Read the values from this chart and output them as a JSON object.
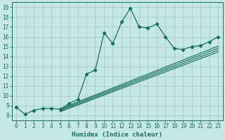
{
  "title": "",
  "xlabel": "Humidex (Indice chaleur)",
  "ylabel": "",
  "xlim": [
    -0.5,
    23.5
  ],
  "ylim": [
    7.5,
    19.5
  ],
  "xticks": [
    0,
    1,
    2,
    3,
    4,
    5,
    6,
    7,
    8,
    9,
    10,
    11,
    12,
    13,
    14,
    15,
    16,
    17,
    18,
    19,
    20,
    21,
    22,
    23
  ],
  "yticks": [
    8,
    9,
    10,
    11,
    12,
    13,
    14,
    15,
    16,
    17,
    18,
    19
  ],
  "bg_color": "#c5e8e2",
  "grid_color": "#9dccc4",
  "line_color": "#1a7060",
  "main_series": {
    "x": [
      0,
      1,
      2,
      3,
      4,
      5,
      6,
      7,
      8,
      9,
      10,
      11,
      12,
      13,
      14,
      15,
      16,
      17,
      18,
      19,
      20,
      21,
      22,
      23
    ],
    "y": [
      8.8,
      8.1,
      8.5,
      8.7,
      8.7,
      8.6,
      9.2,
      9.6,
      12.2,
      12.6,
      16.4,
      15.3,
      17.5,
      18.9,
      17.0,
      16.9,
      17.3,
      16.0,
      14.8,
      14.7,
      15.0,
      15.1,
      15.5,
      16.0
    ]
  },
  "ref_lines": [
    {
      "x": [
        5,
        23
      ],
      "y": [
        8.65,
        15.05
      ]
    },
    {
      "x": [
        5,
        23
      ],
      "y": [
        8.55,
        14.85
      ]
    },
    {
      "x": [
        5,
        23
      ],
      "y": [
        8.45,
        14.65
      ]
    },
    {
      "x": [
        5,
        23
      ],
      "y": [
        8.35,
        14.45
      ]
    }
  ]
}
